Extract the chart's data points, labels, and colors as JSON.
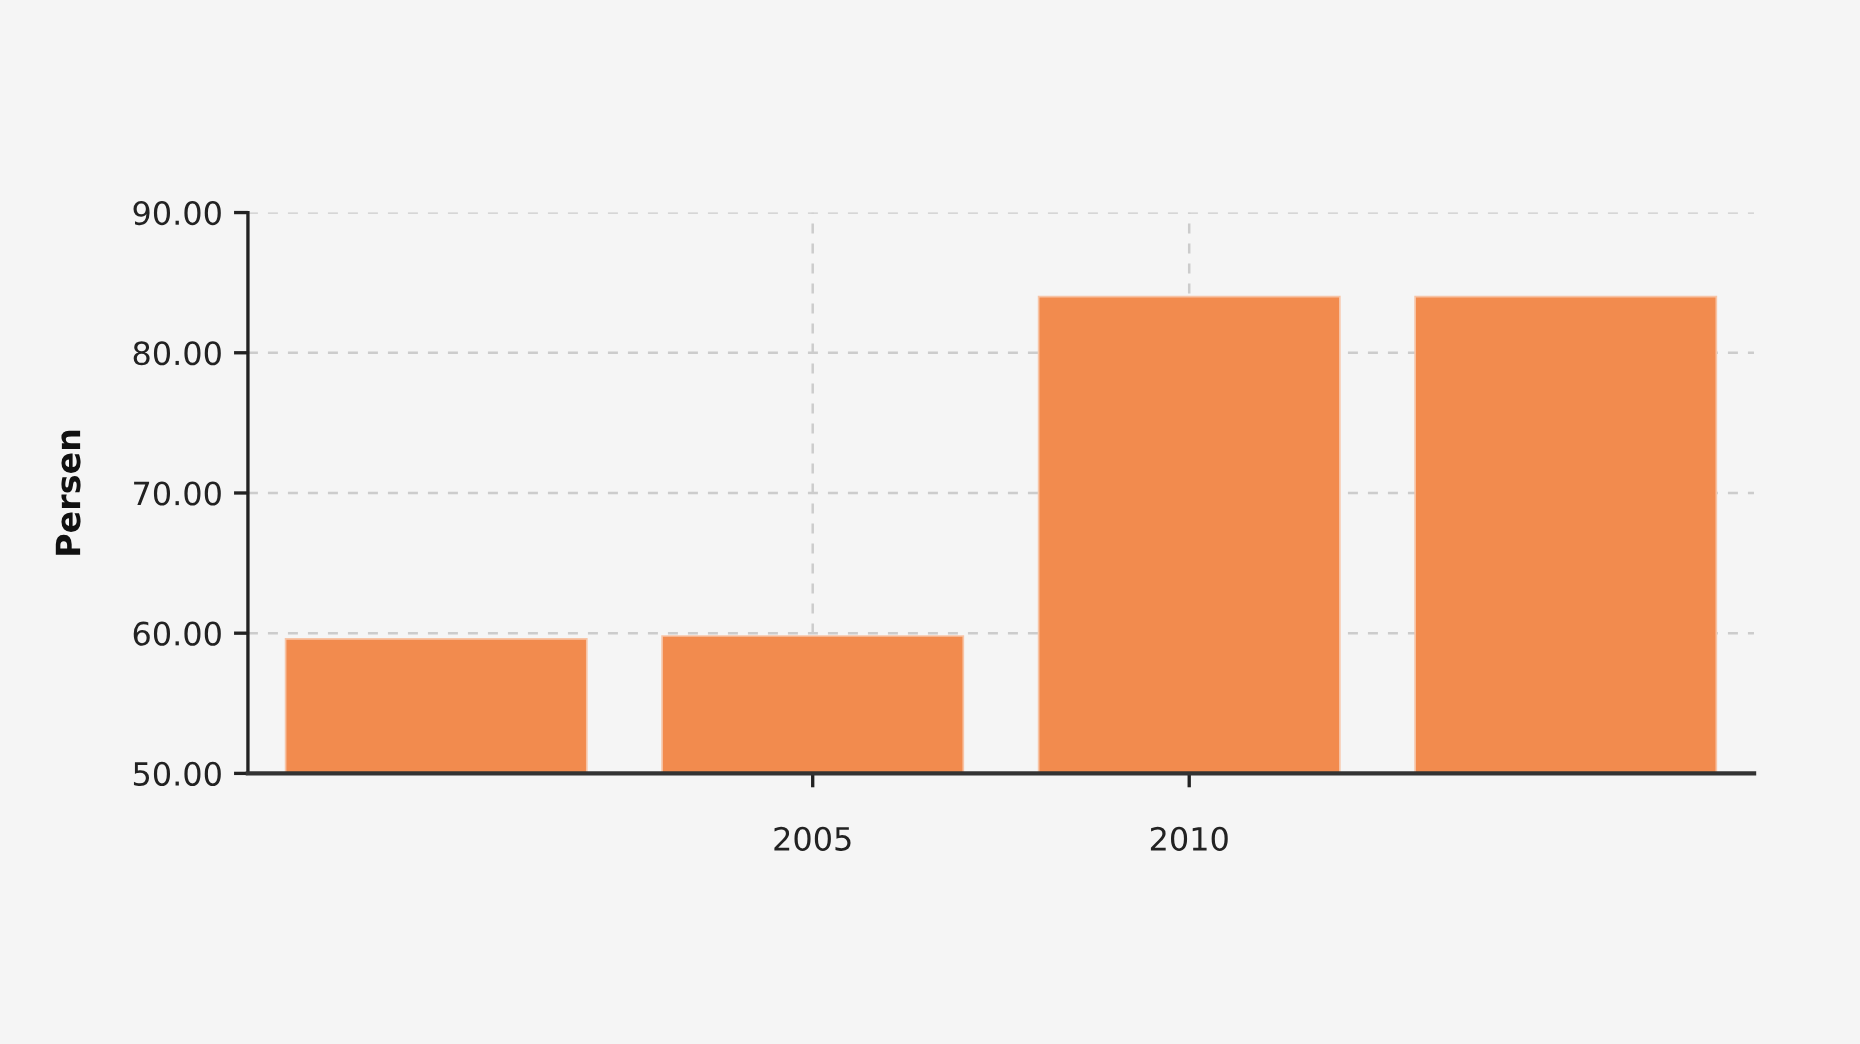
{
  "chart_data": {
    "type": "bar",
    "ylabel": "Persen",
    "categories": [
      null,
      "2005",
      "2010",
      null
    ],
    "values": [
      59.6,
      59.8,
      84.0,
      84.0
    ],
    "color": "#f28b4e",
    "ylim": [
      50,
      90
    ],
    "yticks": [
      {
        "value": 50,
        "label": "50.00"
      },
      {
        "value": 60,
        "label": "60.00"
      },
      {
        "value": 70,
        "label": "70.00"
      },
      {
        "value": 80,
        "label": "80.00"
      },
      {
        "value": 90,
        "label": "90.00"
      }
    ],
    "grid": true
  }
}
